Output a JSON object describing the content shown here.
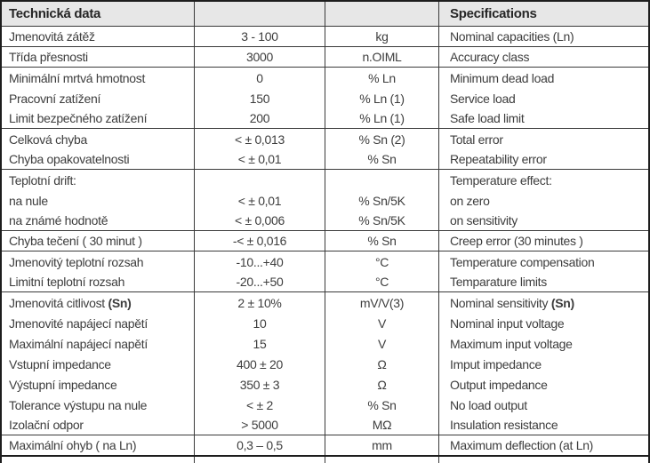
{
  "header": {
    "czech": "Technická data",
    "english": "Specifications"
  },
  "styles": {
    "header_bg": "#e7e7e7",
    "outer_border": "#1d1d1d",
    "inner_border": "#3a3a3a",
    "text_color": "#3d3d3d"
  },
  "rows": [
    {
      "czech": "Jmenovitá zátěž",
      "value": "3 - 100",
      "unit": "kg",
      "english": "Nominal capacities (Ln)",
      "separator": true
    },
    {
      "czech": "Třída přesnosti",
      "value": "3000",
      "unit": "n.OIML",
      "english": "Accuracy class",
      "separator": true
    },
    {
      "czech": "Minimální mrtvá hmotnost",
      "value": "0",
      "unit": "% Ln",
      "english": "Minimum dead load",
      "separator": false
    },
    {
      "czech": "Pracovní zatížení",
      "value": "150",
      "unit": "% Ln (1)",
      "english": "Service load",
      "separator": false
    },
    {
      "czech": "Limit bezpečného zatížení",
      "value": "200",
      "unit": "% Ln (1)",
      "english": "Safe load limit",
      "separator": true
    },
    {
      "czech": "Celková chyba",
      "value": "< ± 0,013",
      "unit": "% Sn (2)",
      "english": "Total error",
      "separator": false
    },
    {
      "czech": "Chyba opakovatelnosti",
      "value": "< ± 0,01",
      "unit": "% Sn",
      "english": "Repeatability error",
      "separator": true
    },
    {
      "czech": "Teplotní drift:",
      "value": "",
      "unit": "",
      "english": "Temperature effect:",
      "separator": false
    },
    {
      "czech": "na nule",
      "value": "< ± 0,01",
      "unit": "% Sn/5K",
      "english": "on zero",
      "separator": false
    },
    {
      "czech": "na známé hodnotě",
      "value": "< ± 0,006",
      "unit": "% Sn/5K",
      "english": "on sensitivity",
      "separator": true
    },
    {
      "czech": "Chyba tečení ( 30 minut )",
      "value": "-< ± 0,016",
      "unit": "% Sn",
      "english": "Creep error (30 minutes )",
      "separator": true
    },
    {
      "czech": "Jmenovitý teplotní rozsah",
      "value": "-10...+40",
      "unit": "°C",
      "english": "Temperature compensation",
      "separator": false
    },
    {
      "czech": "Limitní teplotní rozsah",
      "value": "-20...+50",
      "unit": "°C",
      "english": "Temparature limits",
      "separator": true
    },
    {
      "czech": "Jmenovitá citlivost ",
      "czech_bold": "(Sn)",
      "value": "2 ± 10%",
      "unit": "mV/V(3)",
      "english": "Nominal sensitivity ",
      "english_bold": "(Sn)",
      "separator": false
    },
    {
      "czech": "Jmenovité napájecí napětí",
      "value": "10",
      "unit": "V",
      "english": "Nominal input voltage",
      "separator": false
    },
    {
      "czech": "Maximální napájecí napětí",
      "value": "15",
      "unit": "V",
      "english": "Maximum input voltage",
      "separator": false
    },
    {
      "czech": "Vstupní impedance",
      "value": "400 ± 20",
      "unit": "Ω",
      "english": "Imput impedance",
      "separator": false
    },
    {
      "czech": "Výstupní impedance",
      "value": "350 ± 3",
      "unit": "Ω",
      "english": "Output impedance",
      "separator": false
    },
    {
      "czech": "Tolerance výstupu na nule",
      "value": "< ± 2",
      "unit": "% Sn",
      "english": "No load output",
      "separator": false
    },
    {
      "czech": "Izolační odpor",
      "value": "> 5000",
      "unit": "MΩ",
      "english": "Insulation resistance",
      "separator": true
    },
    {
      "czech": "Maximální ohyb ( na Ln)",
      "value": "0,3 – 0,5",
      "unit": "mm",
      "english": "Maximum deflection (at Ln)",
      "separator": false
    }
  ]
}
